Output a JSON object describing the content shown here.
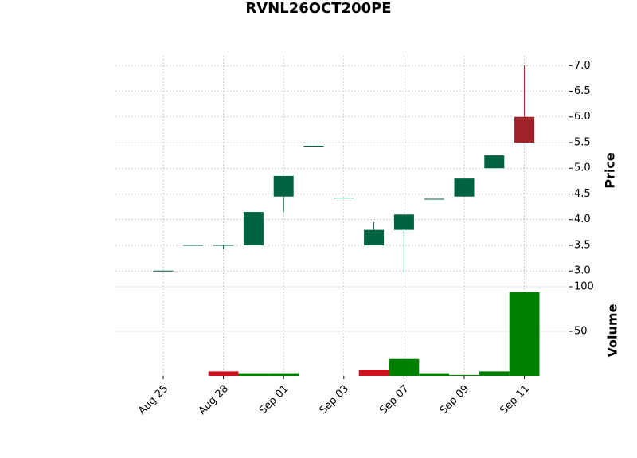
{
  "chart_data": {
    "type": "candlestick",
    "title": "RVNL26OCT200PE",
    "categories": [
      "Aug 25",
      null,
      "Aug 28",
      null,
      "Sep 01",
      null,
      "Sep 03",
      null,
      "Sep 07",
      null,
      "Sep 09",
      null,
      "Sep 11"
    ],
    "open": [
      3.0,
      3.5,
      3.5,
      3.5,
      4.45,
      5.43,
      4.42,
      3.5,
      3.8,
      4.4,
      4.45,
      5.0,
      6.0
    ],
    "high": [
      3.0,
      3.5,
      3.5,
      4.15,
      4.85,
      5.43,
      4.42,
      3.95,
      4.1,
      4.4,
      4.8,
      5.25,
      7.0
    ],
    "low": [
      3.0,
      3.5,
      3.42,
      3.5,
      4.15,
      5.43,
      4.42,
      3.5,
      2.95,
      4.4,
      4.45,
      5.0,
      5.5
    ],
    "close": [
      3.0,
      3.5,
      3.5,
      4.15,
      4.85,
      5.43,
      4.42,
      3.8,
      4.1,
      4.4,
      4.8,
      5.25,
      5.5
    ],
    "up_color": "#006340",
    "down_color": "#a02128",
    "ylabel": "Price",
    "ylim": [
      2.74,
      7.19
    ],
    "yticks": [
      {
        "value": 3,
        "label": "3.0"
      },
      3.5,
      {
        "value": 4,
        "label": "4.0"
      },
      4.5,
      {
        "value": 5,
        "label": "5.0"
      },
      5.5,
      {
        "value": 6,
        "label": "6.0"
      },
      6.5,
      {
        "value": 7,
        "label": "7.0"
      }
    ],
    "volume": [
      0,
      0,
      5,
      3,
      3,
      0,
      0,
      7,
      19,
      3,
      1,
      5,
      94
    ],
    "volume_colors": [
      "#008000",
      "#008000",
      "#d01020",
      "#008000",
      "#008000",
      "#008000",
      "#008000",
      "#d01020",
      "#008000",
      "#008000",
      "#008000",
      "#008000",
      "#008000"
    ],
    "volume_label": "Volume",
    "volume_ylim": [
      0,
      100
    ],
    "volume_yticks": [
      50,
      100
    ],
    "grid": true
  }
}
